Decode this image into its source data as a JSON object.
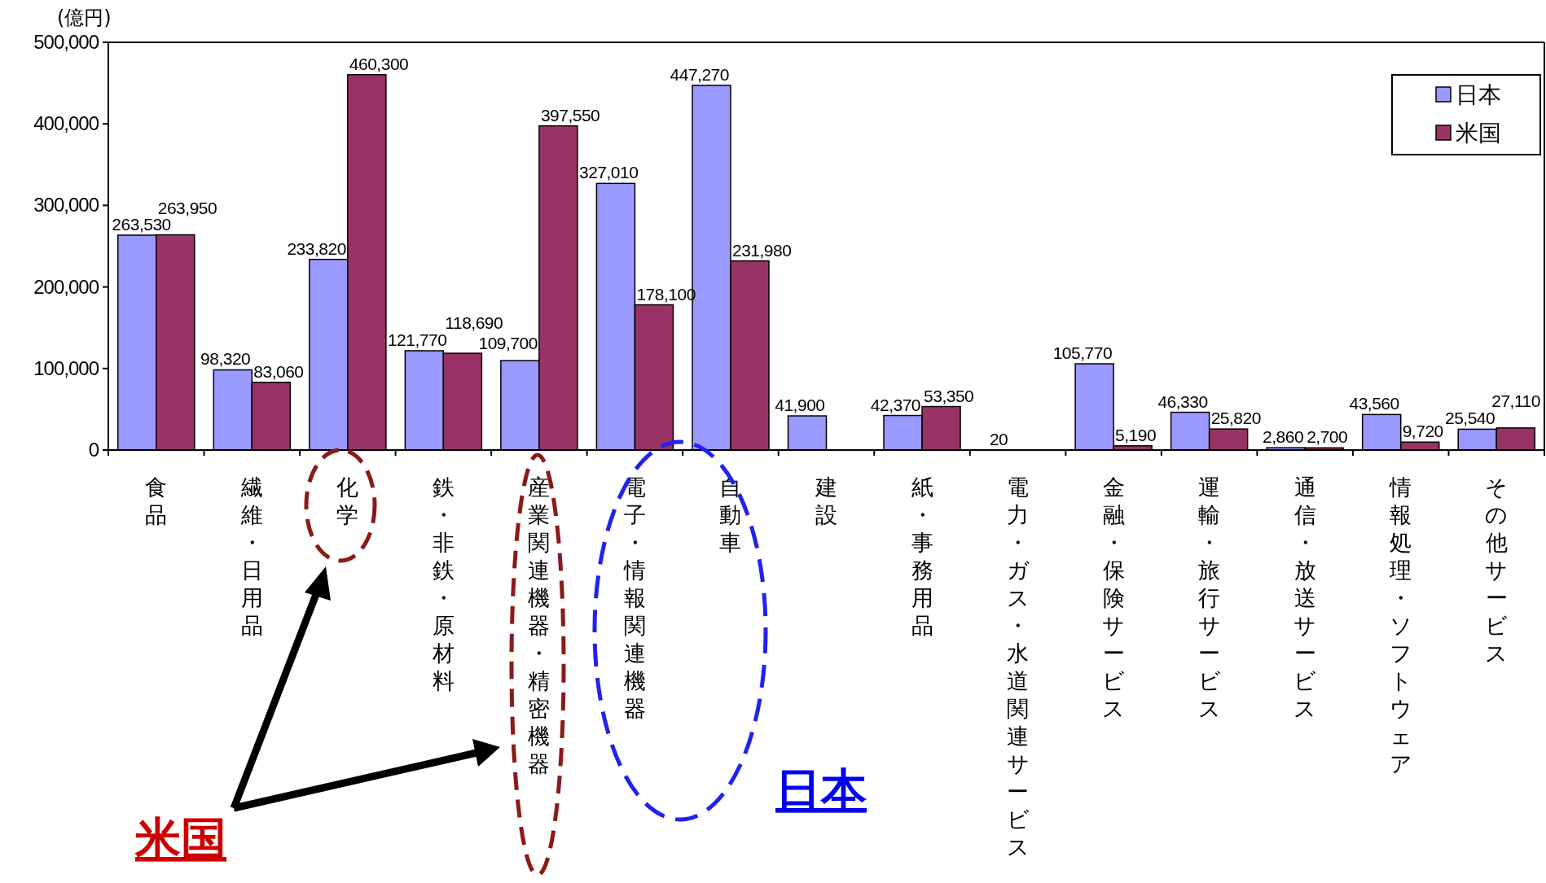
{
  "chart_data": {
    "type": "bar",
    "ylabel": "(億円)",
    "categories": [
      "食品",
      "繊維・日用品",
      "化学",
      "鉄・非鉄・原材料",
      "産業関連機器・精密機器",
      "電子・情報関連機器",
      "自動車",
      "建設",
      "紙・事務用品",
      "電力・ガス・水道関連サービス",
      "金融・保険サービス",
      "運輸・旅行サービス",
      "通信・放送サービス",
      "情報処理・ソフトウェア",
      "その他サービス"
    ],
    "series": [
      {
        "name": "日本",
        "color": "#9999ff",
        "values": [
          263530,
          98320,
          233820,
          121770,
          109700,
          327010,
          447270,
          41900,
          42370,
          20,
          105770,
          46330,
          2860,
          43560,
          25540
        ],
        "value_labels": [
          "263,530",
          "98,320",
          "233,820",
          "121,770",
          "109,700",
          "327,010",
          "447,270",
          "41,900",
          "42,370",
          "20",
          "105,770",
          "46,330",
          "2,860",
          "43,560",
          "25,540"
        ]
      },
      {
        "name": "米国",
        "color": "#993366",
        "values": [
          263950,
          83060,
          460300,
          118690,
          397550,
          178100,
          231980,
          null,
          53350,
          null,
          5190,
          25820,
          2700,
          9720,
          27110
        ],
        "value_labels": [
          "263,950",
          "83,060",
          "460,300",
          "118,690",
          "397,550",
          "178,100",
          "231,980",
          null,
          "53,350",
          null,
          "5,190",
          "25,820",
          "2,700",
          "9,720",
          "27,110"
        ]
      }
    ],
    "ylim": [
      0,
      500000
    ],
    "yticks": [
      0,
      {
        "value": 100000,
        "label": "100,000"
      },
      {
        "value": 200000,
        "label": "200,000"
      },
      {
        "value": 300000,
        "label": "300,000"
      },
      {
        "value": 400000,
        "label": "400,000"
      },
      {
        "value": 500000,
        "label": "500,000"
      }
    ],
    "legend": "top right",
    "grid": false,
    "annotations": [
      "米国",
      "日本"
    ]
  }
}
